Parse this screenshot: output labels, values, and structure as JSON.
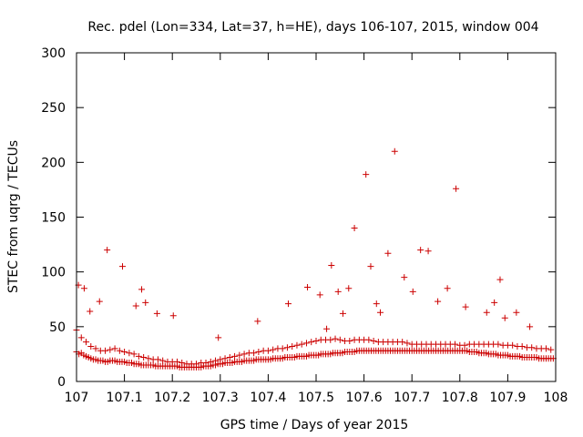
{
  "chart_data": {
    "type": "scatter",
    "title": "Rec. pdel (Lon=334, Lat=37, h=HE), days 106-107, 2015, window 004",
    "xlabel": "GPS time / Days of year 2015",
    "ylabel": "STEC from uqrg / TECUs",
    "xlim": [
      107,
      108
    ],
    "ylim": [
      0,
      300
    ],
    "x_ticks": [
      "107",
      "107.1",
      "107.2",
      "107.3",
      "107.4",
      "107.5",
      "107.6",
      "107.7",
      "107.8",
      "107.9",
      "108"
    ],
    "y_ticks": [
      "0",
      "50",
      "100",
      "150",
      "200",
      "250",
      "300"
    ],
    "grid": false,
    "legend": "none",
    "marker": "plus",
    "color": "#cc0000",
    "series": [
      {
        "x": [
          107.0,
          107.005,
          107.01,
          107.015,
          107.02,
          107.025,
          107.03,
          107.035,
          107.04,
          107.045,
          107.05,
          107.055,
          107.06,
          107.065,
          107.07,
          107.075,
          107.08,
          107.085,
          107.09,
          107.095,
          107.1,
          107.105,
          107.11,
          107.115,
          107.12,
          107.125,
          107.13,
          107.135,
          107.14,
          107.145,
          107.15,
          107.155,
          107.16,
          107.165,
          107.17,
          107.175,
          107.18,
          107.185,
          107.19,
          107.195,
          107.2,
          107.205,
          107.21,
          107.215,
          107.22,
          107.225,
          107.23,
          107.235,
          107.24,
          107.245,
          107.25,
          107.255,
          107.26,
          107.265,
          107.27,
          107.275,
          107.28,
          107.285,
          107.29,
          107.295,
          107.3,
          107.305,
          107.31,
          107.315,
          107.32,
          107.325,
          107.33,
          107.335,
          107.34,
          107.345,
          107.35,
          107.355,
          107.36,
          107.365,
          107.37,
          107.375,
          107.38,
          107.385,
          107.39,
          107.395,
          107.4,
          107.405,
          107.41,
          107.415,
          107.42,
          107.425,
          107.43,
          107.435,
          107.44,
          107.445,
          107.45,
          107.455,
          107.46,
          107.465,
          107.47,
          107.475,
          107.48,
          107.485,
          107.49,
          107.495,
          107.5,
          107.505,
          107.51,
          107.515,
          107.52,
          107.525,
          107.53,
          107.535,
          107.54,
          107.545,
          107.55,
          107.555,
          107.56,
          107.565,
          107.57,
          107.575,
          107.58,
          107.585,
          107.59,
          107.595,
          107.6,
          107.605,
          107.61,
          107.615,
          107.62,
          107.625,
          107.63,
          107.635,
          107.64,
          107.645,
          107.65,
          107.655,
          107.66,
          107.665,
          107.67,
          107.675,
          107.68,
          107.685,
          107.69,
          107.695,
          107.7,
          107.705,
          107.71,
          107.715,
          107.72,
          107.725,
          107.73,
          107.735,
          107.74,
          107.745,
          107.75,
          107.755,
          107.76,
          107.765,
          107.77,
          107.775,
          107.78,
          107.785,
          107.79,
          107.795,
          107.8,
          107.805,
          107.81,
          107.815,
          107.82,
          107.825,
          107.83,
          107.835,
          107.84,
          107.845,
          107.85,
          107.855,
          107.86,
          107.865,
          107.87,
          107.875,
          107.88,
          107.885,
          107.89,
          107.895,
          107.9,
          107.905,
          107.91,
          107.915,
          107.92,
          107.925,
          107.93,
          107.935,
          107.94,
          107.945,
          107.95,
          107.955,
          107.96,
          107.965,
          107.97,
          107.975,
          107.98,
          107.985,
          107.99,
          107.995,
          107.0,
          107.01,
          107.02,
          107.03,
          107.04,
          107.05,
          107.06,
          107.07,
          107.08,
          107.09,
          107.1,
          107.11,
          107.12,
          107.13,
          107.14,
          107.15,
          107.16,
          107.17,
          107.18,
          107.19,
          107.2,
          107.21,
          107.22,
          107.23,
          107.24,
          107.25,
          107.26,
          107.27,
          107.28,
          107.29,
          107.3,
          107.31,
          107.32,
          107.33,
          107.34,
          107.35,
          107.36,
          107.37,
          107.38,
          107.39,
          107.4,
          107.41,
          107.42,
          107.43,
          107.44,
          107.45,
          107.46,
          107.47,
          107.48,
          107.49,
          107.5,
          107.51,
          107.52,
          107.53,
          107.54,
          107.55,
          107.56,
          107.57,
          107.58,
          107.59,
          107.6,
          107.61,
          107.62,
          107.63,
          107.64,
          107.65,
          107.66,
          107.67,
          107.68,
          107.69,
          107.7,
          107.71,
          107.72,
          107.73,
          107.74,
          107.75,
          107.76,
          107.77,
          107.78,
          107.79,
          107.8,
          107.81,
          107.82,
          107.83,
          107.84,
          107.85,
          107.86,
          107.87,
          107.88,
          107.89,
          107.9,
          107.91,
          107.92,
          107.93,
          107.94,
          107.95,
          107.96,
          107.97,
          107.98,
          107.99,
          107.004,
          107.016,
          107.028,
          107.048,
          107.064,
          107.096,
          107.124,
          107.136,
          107.144,
          107.168,
          107.202,
          107.296,
          107.378,
          107.442,
          107.482,
          107.508,
          107.522,
          107.532,
          107.546,
          107.556,
          107.568,
          107.58,
          107.604,
          107.614,
          107.626,
          107.634,
          107.65,
          107.664,
          107.684,
          107.702,
          107.718,
          107.734,
          107.754,
          107.774,
          107.792,
          107.812,
          107.856,
          107.872,
          107.884,
          107.894,
          107.918,
          107.946
        ],
        "y": [
          27,
          25,
          26,
          24,
          23,
          22,
          21,
          20,
          20,
          19,
          19,
          19,
          18,
          18,
          19,
          19,
          19,
          18,
          18,
          18,
          18,
          17,
          17,
          17,
          16,
          16,
          16,
          15,
          15,
          15,
          15,
          15,
          15,
          14,
          14,
          14,
          14,
          14,
          14,
          14,
          14,
          14,
          14,
          13,
          13,
          13,
          13,
          13,
          13,
          13,
          13,
          13,
          13,
          14,
          14,
          14,
          14,
          15,
          15,
          16,
          16,
          16,
          17,
          17,
          17,
          17,
          18,
          18,
          18,
          18,
          19,
          19,
          19,
          19,
          19,
          20,
          20,
          20,
          20,
          20,
          20,
          20,
          21,
          21,
          21,
          21,
          21,
          22,
          22,
          22,
          22,
          22,
          23,
          23,
          23,
          23,
          23,
          24,
          24,
          24,
          24,
          24,
          25,
          25,
          25,
          25,
          25,
          26,
          26,
          26,
          26,
          26,
          27,
          27,
          27,
          27,
          27,
          28,
          28,
          28,
          28,
          28,
          28,
          28,
          28,
          28,
          28,
          28,
          28,
          28,
          28,
          28,
          28,
          28,
          28,
          28,
          28,
          28,
          28,
          28,
          28,
          28,
          28,
          28,
          28,
          28,
          28,
          28,
          28,
          28,
          28,
          28,
          28,
          28,
          28,
          28,
          28,
          28,
          28,
          28,
          28,
          28,
          28,
          28,
          27,
          27,
          27,
          27,
          26,
          26,
          26,
          26,
          25,
          25,
          25,
          25,
          24,
          24,
          24,
          24,
          24,
          23,
          23,
          23,
          23,
          23,
          22,
          22,
          22,
          22,
          22,
          22,
          22,
          21,
          21,
          21,
          21,
          21,
          21,
          21,
          47,
          40,
          36,
          32,
          30,
          28,
          28,
          29,
          30,
          28,
          27,
          26,
          25,
          23,
          22,
          21,
          20,
          20,
          19,
          18,
          18,
          18,
          17,
          16,
          16,
          16,
          17,
          17,
          18,
          19,
          20,
          21,
          22,
          23,
          24,
          25,
          26,
          26,
          27,
          28,
          28,
          29,
          30,
          30,
          31,
          32,
          33,
          34,
          35,
          36,
          37,
          38,
          38,
          38,
          39,
          38,
          37,
          37,
          38,
          38,
          38,
          38,
          37,
          36,
          36,
          36,
          36,
          36,
          36,
          35,
          34,
          34,
          34,
          34,
          34,
          34,
          34,
          34,
          34,
          34,
          33,
          33,
          34,
          34,
          34,
          34,
          34,
          34,
          34,
          33,
          33,
          33,
          32,
          32,
          31,
          31,
          30,
          30,
          30,
          29,
          88,
          85,
          64,
          73,
          120,
          105,
          69,
          84,
          72,
          62,
          60,
          40,
          55,
          71,
          86,
          79,
          48,
          106,
          82,
          62,
          85,
          140,
          189,
          105,
          71,
          63,
          117,
          210,
          95,
          82,
          120,
          119,
          73,
          85,
          176,
          68,
          63,
          72,
          93,
          58,
          63,
          50
        ]
      }
    ]
  }
}
